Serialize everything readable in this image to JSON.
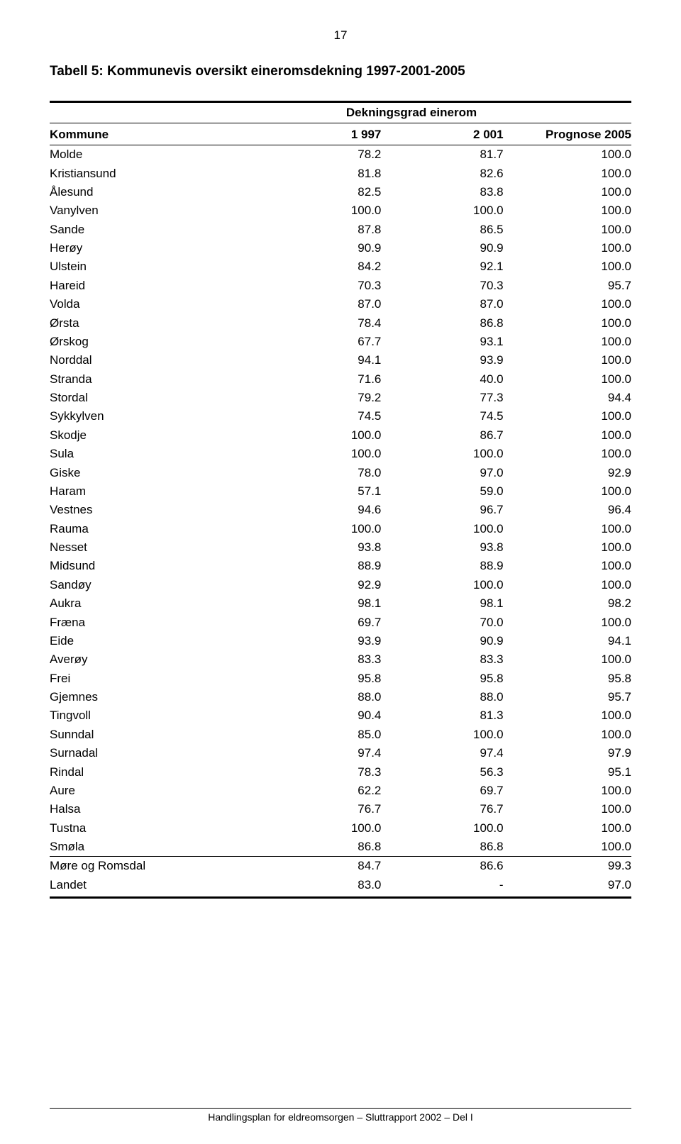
{
  "page_number": "17",
  "title": "Tabell 5: Kommunevis oversikt eineromsdekning 1997-2001-2005",
  "sub_header": "Dekningsgrad einerom",
  "columns": {
    "name": "Kommune",
    "a": "1 997",
    "b": "2 001",
    "c": "Prognose 2005"
  },
  "rows": [
    {
      "name": "Molde",
      "a": "78.2",
      "b": "81.7",
      "c": "100.0"
    },
    {
      "name": "Kristiansund",
      "a": "81.8",
      "b": "82.6",
      "c": "100.0"
    },
    {
      "name": "Ålesund",
      "a": "82.5",
      "b": "83.8",
      "c": "100.0"
    },
    {
      "name": "Vanylven",
      "a": "100.0",
      "b": "100.0",
      "c": "100.0"
    },
    {
      "name": "Sande",
      "a": "87.8",
      "b": "86.5",
      "c": "100.0"
    },
    {
      "name": "Herøy",
      "a": "90.9",
      "b": "90.9",
      "c": "100.0"
    },
    {
      "name": "Ulstein",
      "a": "84.2",
      "b": "92.1",
      "c": "100.0"
    },
    {
      "name": "Hareid",
      "a": "70.3",
      "b": "70.3",
      "c": "95.7"
    },
    {
      "name": "Volda",
      "a": "87.0",
      "b": "87.0",
      "c": "100.0"
    },
    {
      "name": "Ørsta",
      "a": "78.4",
      "b": "86.8",
      "c": "100.0"
    },
    {
      "name": "Ørskog",
      "a": "67.7",
      "b": "93.1",
      "c": "100.0"
    },
    {
      "name": "Norddal",
      "a": "94.1",
      "b": "93.9",
      "c": "100.0"
    },
    {
      "name": "Stranda",
      "a": "71.6",
      "b": "40.0",
      "c": "100.0"
    },
    {
      "name": "Stordal",
      "a": "79.2",
      "b": "77.3",
      "c": "94.4"
    },
    {
      "name": "Sykkylven",
      "a": "74.5",
      "b": "74.5",
      "c": "100.0"
    },
    {
      "name": "Skodje",
      "a": "100.0",
      "b": "86.7",
      "c": "100.0"
    },
    {
      "name": "Sula",
      "a": "100.0",
      "b": "100.0",
      "c": "100.0"
    },
    {
      "name": "Giske",
      "a": "78.0",
      "b": "97.0",
      "c": "92.9"
    },
    {
      "name": "Haram",
      "a": "57.1",
      "b": "59.0",
      "c": "100.0"
    },
    {
      "name": "Vestnes",
      "a": "94.6",
      "b": "96.7",
      "c": "96.4"
    },
    {
      "name": "Rauma",
      "a": "100.0",
      "b": "100.0",
      "c": "100.0"
    },
    {
      "name": "Nesset",
      "a": "93.8",
      "b": "93.8",
      "c": "100.0"
    },
    {
      "name": "Midsund",
      "a": "88.9",
      "b": "88.9",
      "c": "100.0"
    },
    {
      "name": "Sandøy",
      "a": "92.9",
      "b": "100.0",
      "c": "100.0"
    },
    {
      "name": "Aukra",
      "a": "98.1",
      "b": "98.1",
      "c": "98.2"
    },
    {
      "name": "Fræna",
      "a": "69.7",
      "b": "70.0",
      "c": "100.0"
    },
    {
      "name": "Eide",
      "a": "93.9",
      "b": "90.9",
      "c": "94.1"
    },
    {
      "name": "Averøy",
      "a": "83.3",
      "b": "83.3",
      "c": "100.0"
    },
    {
      "name": "Frei",
      "a": "95.8",
      "b": "95.8",
      "c": "95.8"
    },
    {
      "name": "Gjemnes",
      "a": "88.0",
      "b": "88.0",
      "c": "95.7"
    },
    {
      "name": "Tingvoll",
      "a": "90.4",
      "b": "81.3",
      "c": "100.0"
    },
    {
      "name": "Sunndal",
      "a": "85.0",
      "b": "100.0",
      "c": "100.0"
    },
    {
      "name": "Surnadal",
      "a": "97.4",
      "b": "97.4",
      "c": "97.9"
    },
    {
      "name": "Rindal",
      "a": "78.3",
      "b": "56.3",
      "c": "95.1"
    },
    {
      "name": "Aure",
      "a": "62.2",
      "b": "69.7",
      "c": "100.0"
    },
    {
      "name": "Halsa",
      "a": "76.7",
      "b": "76.7",
      "c": "100.0"
    },
    {
      "name": "Tustna",
      "a": "100.0",
      "b": "100.0",
      "c": "100.0"
    },
    {
      "name": "Smøla",
      "a": "86.8",
      "b": "86.8",
      "c": "100.0"
    }
  ],
  "summary_rows": [
    {
      "name": "Møre og Romsdal",
      "a": "84.7",
      "b": "86.6",
      "c": "99.3"
    },
    {
      "name": "Landet",
      "a": "83.0",
      "b": "-",
      "c": "97.0"
    }
  ],
  "footer": "Handlingsplan for eldreomsorgen – Sluttrapport 2002 – Del  I",
  "style": {
    "background_color": "#ffffff",
    "text_color": "#000000",
    "font_family": "Arial, Helvetica, sans-serif",
    "title_fontsize": 19,
    "body_fontsize": 17,
    "footer_fontsize": 14,
    "rule_color": "#000000",
    "top_rule_weight": 3,
    "inner_rule_weight": 1,
    "bottom_rule_weight": 3,
    "column_widths_pct": [
      36,
      21,
      21,
      22
    ],
    "alignment": [
      "left",
      "right",
      "right",
      "right"
    ]
  }
}
